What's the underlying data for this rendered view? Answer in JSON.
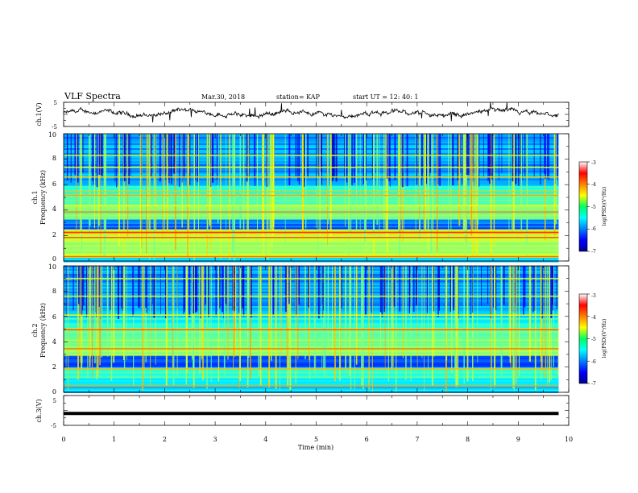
{
  "header": {
    "title": "VLF Spectra",
    "date": "Mar.30, 2018",
    "station": "station= KAP",
    "start": "start  UT =   12: 40: 1"
  },
  "chart_data": [
    {
      "type": "line",
      "name": "ch1-waveform",
      "ylabel": "ch.1(V)",
      "ylim": [
        -5,
        5
      ],
      "y_ticks": [
        "5",
        "-5"
      ],
      "xlim": [
        0,
        10
      ],
      "x_end": 9.8,
      "baseline": 0.4,
      "color": "#000000"
    },
    {
      "type": "heatmap",
      "name": "ch1-spectrogram",
      "title": "ch.1",
      "ylabel": "Frequency (kHz)",
      "ylim": [
        0,
        10
      ],
      "y_ticks": [
        "0",
        "2",
        "4",
        "6",
        "8",
        "10"
      ],
      "xlim": [
        0,
        10
      ],
      "x_end": 9.8,
      "colorbar": {
        "label": "log(PSD)(V²/Hz)",
        "range": [
          -7,
          -3
        ],
        "ticks": [
          "-3",
          "-4",
          "-5",
          "-6",
          "-7"
        ]
      },
      "bands": [
        {
          "f": [
            0.0,
            0.3
          ],
          "level": 0.35
        },
        {
          "f": [
            0.3,
            0.9
          ],
          "level": 0.55
        },
        {
          "f": [
            0.9,
            1.9
          ],
          "level": 0.52
        },
        {
          "f": [
            1.9,
            2.6
          ],
          "level": 0.62
        },
        {
          "f": [
            2.6,
            3.4
          ],
          "level": 0.22
        },
        {
          "f": [
            3.4,
            5.3
          ],
          "level": 0.48
        },
        {
          "f": [
            5.3,
            6.0
          ],
          "level": 0.38
        },
        {
          "f": [
            6.0,
            10.0
          ],
          "level": 0.28
        }
      ],
      "lines_khz": [
        {
          "f": 2.25,
          "level": 0.85
        },
        {
          "f": 1.85,
          "level": 0.8
        },
        {
          "f": 0.35,
          "level": 0.78
        },
        {
          "f": 3.85,
          "level": 0.75
        },
        {
          "f": 5.15,
          "level": 0.72
        },
        {
          "f": 5.45,
          "level": 0.68
        },
        {
          "f": 6.6,
          "level": 0.65
        },
        {
          "f": 7.35,
          "level": 0.62
        },
        {
          "f": 8.3,
          "level": 0.6
        },
        {
          "f": 4.35,
          "level": 0.62
        }
      ]
    },
    {
      "type": "heatmap",
      "name": "ch2-spectrogram",
      "title": "ch.2",
      "ylabel": "Frequency (kHz)",
      "ylim": [
        0,
        10
      ],
      "y_ticks": [
        "0",
        "2",
        "4",
        "6",
        "8",
        "10"
      ],
      "xlim": [
        0,
        10
      ],
      "x_end": 9.8,
      "colorbar": {
        "label": "log(PSD)(V²/Hz)",
        "range": [
          -7,
          -3
        ],
        "ticks": [
          "-3",
          "-4",
          "-5",
          "-6",
          "-7"
        ]
      },
      "bands": [
        {
          "f": [
            0.0,
            0.6
          ],
          "level": 0.35
        },
        {
          "f": [
            0.6,
            2.0
          ],
          "level": 0.4
        },
        {
          "f": [
            2.0,
            3.0
          ],
          "level": 0.2
        },
        {
          "f": [
            3.0,
            5.2
          ],
          "level": 0.5
        },
        {
          "f": [
            5.2,
            6.0
          ],
          "level": 0.4
        },
        {
          "f": [
            6.0,
            10.0
          ],
          "level": 0.28
        }
      ],
      "lines_khz": [
        {
          "f": 4.95,
          "level": 0.8
        },
        {
          "f": 3.45,
          "level": 0.75
        },
        {
          "f": 1.85,
          "level": 0.7
        },
        {
          "f": 0.5,
          "level": 0.72
        },
        {
          "f": 6.1,
          "level": 0.62
        },
        {
          "f": 7.6,
          "level": 0.6
        },
        {
          "f": 9.0,
          "level": 0.58
        }
      ]
    },
    {
      "type": "line",
      "name": "ch3-waveform",
      "ylabel": "ch.3(V)",
      "ylim": [
        -5,
        5
      ],
      "y_ticks": [
        "5",
        "0",
        "-5"
      ],
      "xlim": [
        0,
        10
      ],
      "x_end": 9.8,
      "baseline": -1.0,
      "xlabel": "Time (min)",
      "x_ticks": [
        "0",
        "1",
        "2",
        "3",
        "4",
        "5",
        "6",
        "7",
        "8",
        "9",
        "10"
      ],
      "color": "#000000"
    }
  ]
}
